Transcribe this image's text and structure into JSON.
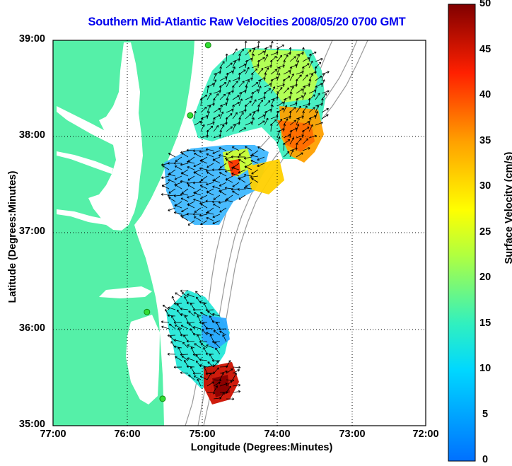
{
  "title": "Southern Mid-Atlantic Raw Velocities 2008/05/20 0700 GMT",
  "map": {
    "xlabel": "Longitude (Degrees:Minutes)",
    "ylabel": "Latitude (Degrees:Minutes)",
    "lon_range": [
      -77,
      -72
    ],
    "lat_range": [
      35,
      39
    ],
    "x_ticks": [
      {
        "value": -77,
        "label": "77:00"
      },
      {
        "value": -76,
        "label": "76:00"
      },
      {
        "value": -75,
        "label": "75:00"
      },
      {
        "value": -74,
        "label": "74:00"
      },
      {
        "value": -73,
        "label": "73:00"
      },
      {
        "value": -72,
        "label": "72:00"
      }
    ],
    "y_ticks": [
      {
        "value": 39,
        "label": "39:00"
      },
      {
        "value": 38,
        "label": "38:00"
      },
      {
        "value": 37,
        "label": "37:00"
      },
      {
        "value": 36,
        "label": "36:00"
      },
      {
        "value": 35,
        "label": "35:00"
      }
    ],
    "grid": "dotted",
    "land_color": "#55f0a8",
    "water_color": "#ffffff",
    "arrow_color": "#000000",
    "station_color": "#33dd33",
    "stations": [
      {
        "lon": -74.92,
        "lat": 38.95
      },
      {
        "lon": -75.16,
        "lat": 38.22
      },
      {
        "lon": -75.74,
        "lat": 36.18
      },
      {
        "lon": -75.53,
        "lat": 35.28
      }
    ]
  },
  "colorbar": {
    "label": "Surface Velocity (cm/s)",
    "min": 0,
    "max": 50,
    "ticks": [
      {
        "value": 50,
        "label": "50"
      },
      {
        "value": 45,
        "label": "45"
      },
      {
        "value": 40,
        "label": "40"
      },
      {
        "value": 35,
        "label": "35"
      },
      {
        "value": 30,
        "label": "30"
      },
      {
        "value": 25,
        "label": "25"
      },
      {
        "value": 20,
        "label": "20"
      },
      {
        "value": 15,
        "label": "15"
      },
      {
        "value": 10,
        "label": "10"
      },
      {
        "value": 5,
        "label": "5"
      },
      {
        "value": 0,
        "label": "0"
      }
    ],
    "colormap": [
      "#0000ff",
      "#00ffff",
      "#ffff00",
      "#ff0000",
      "#800000"
    ]
  }
}
